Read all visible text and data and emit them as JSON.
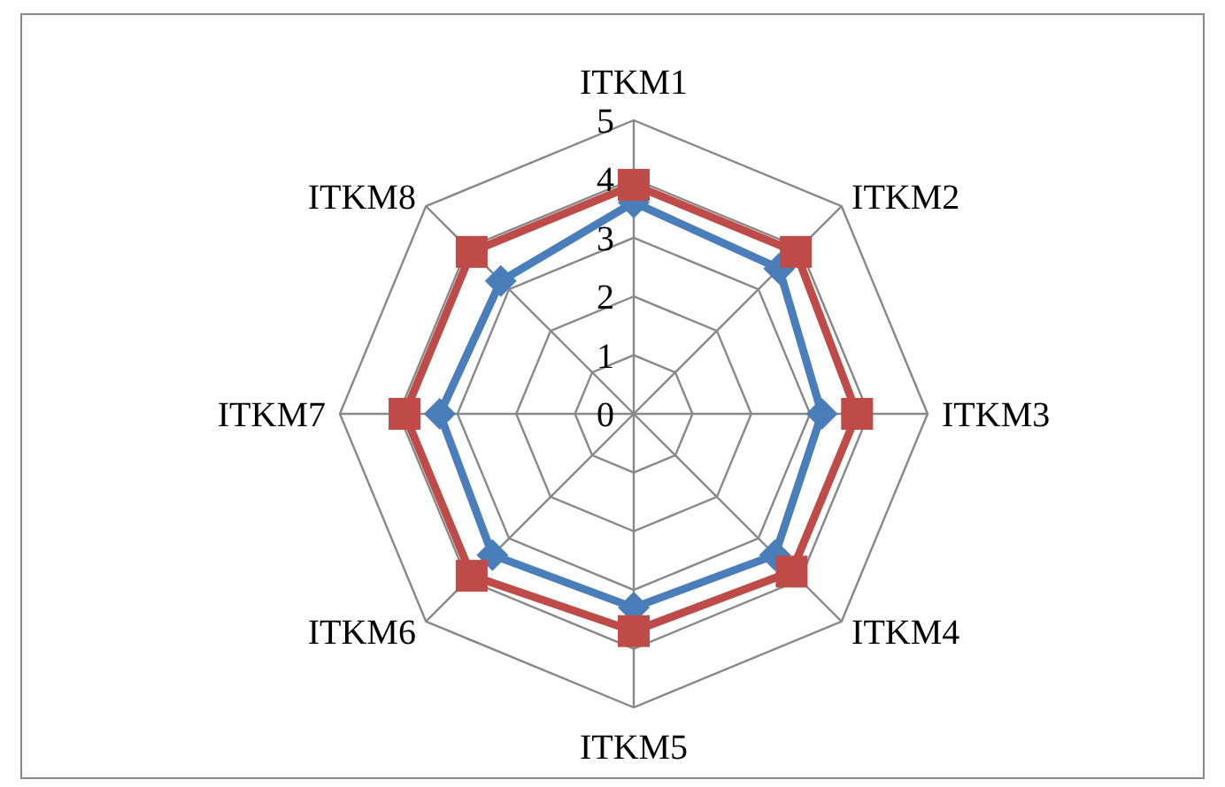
{
  "chart_data": {
    "type": "radar",
    "categories": [
      "ITKM1",
      "ITKM2",
      "ITKM3",
      "ITKM4",
      "ITKM5",
      "ITKM6",
      "ITKM7",
      "ITKM8"
    ],
    "series": [
      {
        "color": "#4a7ebb",
        "marker": "diamond",
        "values": [
          3.6,
          3.5,
          3.2,
          3.4,
          3.3,
          3.4,
          3.3,
          3.2
        ]
      },
      {
        "color": "#be4b48",
        "marker": "square",
        "values": [
          3.9,
          3.9,
          3.8,
          3.8,
          3.7,
          3.9,
          3.9,
          3.9
        ]
      }
    ],
    "ylim": [
      0,
      5
    ],
    "yticks": [
      0,
      1,
      2,
      3,
      4,
      5
    ],
    "grid": true,
    "line_style": "solid"
  }
}
